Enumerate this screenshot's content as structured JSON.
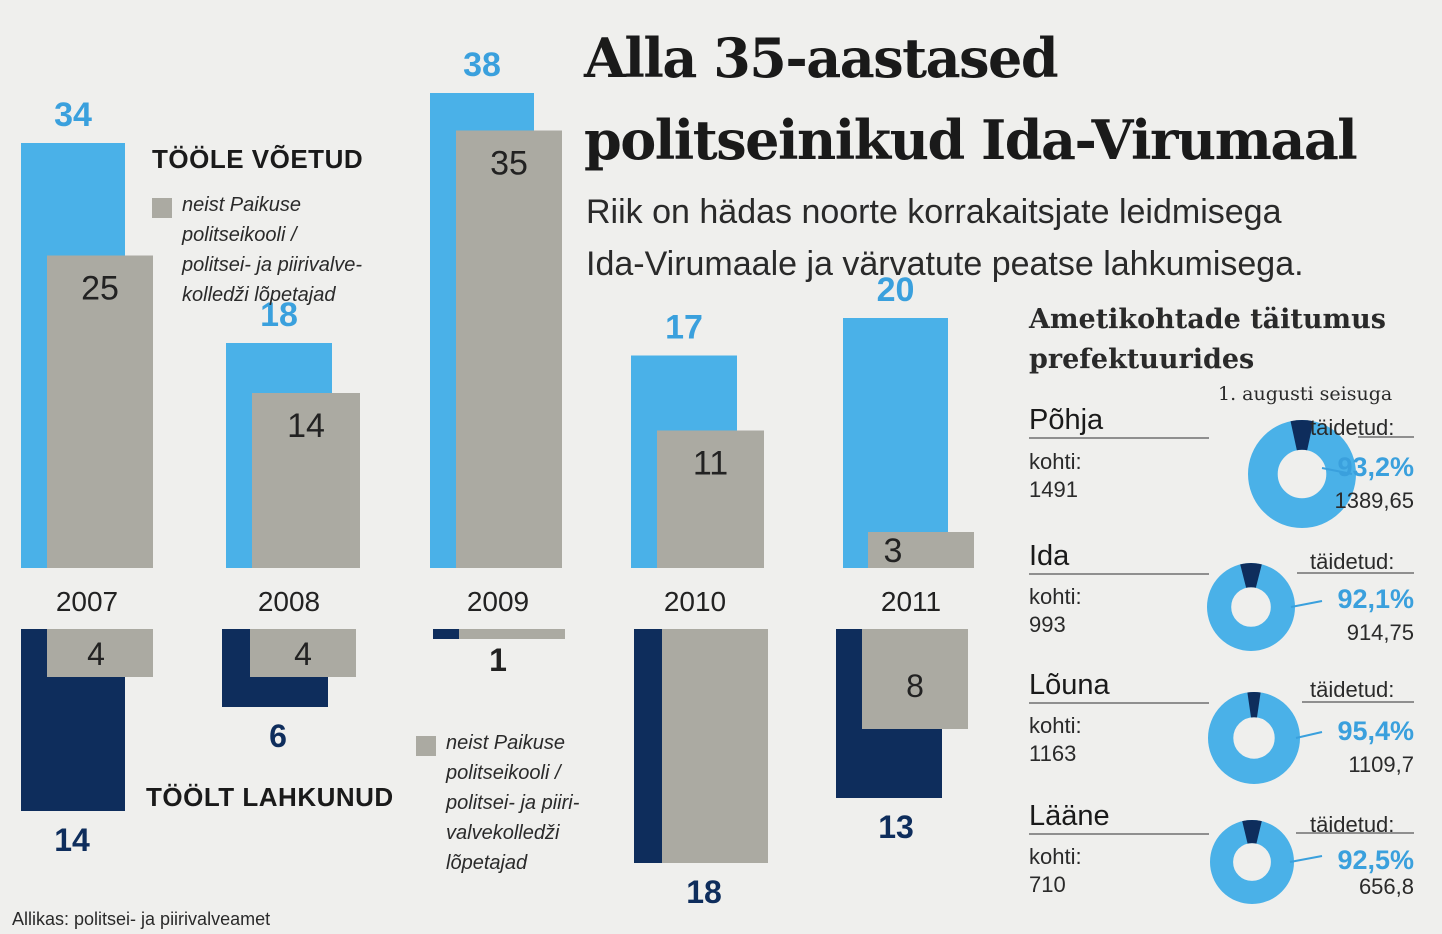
{
  "title_line1": "Alla 35-aastased",
  "title_line2": "politseinikud Ida-Virumaal",
  "subtitle_line1": "Riik on hädas noorte korrakaitsjate leidmisega",
  "subtitle_line2": "Ida-Virumaale ja värvatute peatse lahkumisega.",
  "legend_hired": {
    "heading": "TÖÖLE VÕETUD",
    "note": [
      "neist Paikuse",
      "politseikooli /",
      "politsei- ja piirivalve-",
      "kolledži lõpetajad"
    ]
  },
  "legend_left": {
    "heading": "TÖÖLT LAHKUNUD",
    "note": [
      "neist Paikuse",
      "politseikooli /",
      "politsei- ja piiri-",
      "valvekolledži",
      "lõpetajad"
    ]
  },
  "colors": {
    "hired": "#4ab1e8",
    "left": "#0e2d5c",
    "graduates": "#abaaa2",
    "accent": "#3aa0dd",
    "background": "#efefed"
  },
  "chart_data": {
    "type": "bar",
    "title": "Alla 35-aastased politseinikud Ida-Virumaal",
    "categories": [
      "2007",
      "2008",
      "2009",
      "2010",
      "2011"
    ],
    "series": [
      {
        "name": "Tööle võetud",
        "values": [
          34,
          18,
          38,
          17,
          20
        ]
      },
      {
        "name": "Tööle võetud – neist Paikuse politseikooli / politsei- ja piirivalvekolledži lõpetajad",
        "values": [
          25,
          14,
          35,
          11,
          3
        ]
      },
      {
        "name": "Töölt lahkunud",
        "values": [
          14,
          6,
          1,
          18,
          13
        ]
      },
      {
        "name": "Töölt lahkunud – neist Paikuse politseikooli / politsei- ja piirivalvekolledži lõpetajad",
        "values": [
          4,
          4,
          1,
          17,
          8
        ]
      }
    ],
    "labels": {
      "hired_total": [
        "34",
        "18",
        "38",
        "17",
        "20"
      ],
      "hired_grad": [
        "25",
        "14",
        "35",
        "11",
        "3"
      ],
      "left_total": [
        "14",
        "6",
        "1",
        "18",
        "13"
      ],
      "left_grad": [
        "4",
        "4",
        "",
        "",
        "8"
      ]
    }
  },
  "prefectures": {
    "title_line1": "Ametikohtade täitumus",
    "title_line2": "prefektuurides",
    "as_of": "1. augusti seisuga",
    "items": [
      {
        "name": "Põhja",
        "places_label": "kohti:",
        "places": "1491",
        "filled_label": "täidetud:",
        "percent": "93,2%",
        "filled": "1389,65",
        "fraction": 0.932
      },
      {
        "name": "Ida",
        "places_label": "kohti:",
        "places": "993",
        "filled_label": "täidetud:",
        "percent": "92,1%",
        "filled": "914,75",
        "fraction": 0.921
      },
      {
        "name": "Lõuna",
        "places_label": "kohti:",
        "places": "1163",
        "filled_label": "täidetud:",
        "percent": "95,4%",
        "filled": "1109,7",
        "fraction": 0.954
      },
      {
        "name": "Lääne",
        "places_label": "kohti:",
        "places": "710",
        "filled_label": "täidetud:",
        "percent": "92,5%",
        "filled": "656,8",
        "fraction": 0.925
      }
    ]
  },
  "source": "Allikas: politsei- ja piirivalveamet"
}
